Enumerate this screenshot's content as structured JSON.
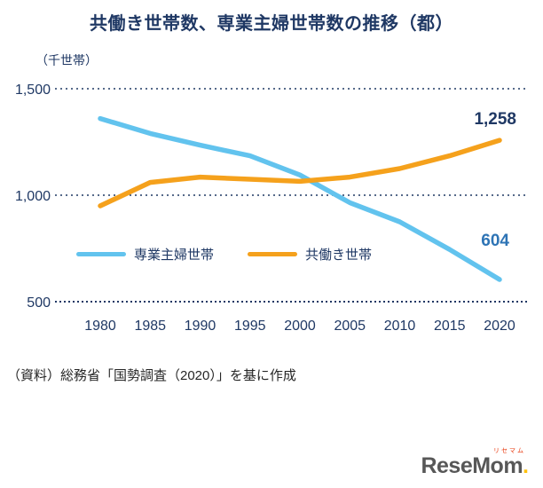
{
  "page": {
    "title": "共働き世帯数、専業主婦世帯数の推移（都）",
    "source_note": "（資料）総務省「国勢調査（2020）」を基に作成",
    "logo": {
      "main": "ReseMom",
      "ruby": "リセマム",
      "dot": "."
    }
  },
  "chart_data": {
    "type": "line",
    "title": "共働き世帯数、専業主婦世帯数の推移（都）",
    "unit_label": "（千世帯）",
    "x": [
      1980,
      1985,
      1990,
      1995,
      2000,
      2005,
      2010,
      2015,
      2020
    ],
    "series": [
      {
        "name": "専業主婦世帯",
        "color": "#62C3EE",
        "values": [
          1360,
          1290,
          1235,
          1185,
          1095,
          965,
          875,
          745,
          604
        ],
        "end_label": "604",
        "end_label_color": "#2E74B5"
      },
      {
        "name": "共働き世帯",
        "color": "#F5A11C",
        "values": [
          950,
          1060,
          1085,
          1075,
          1065,
          1085,
          1125,
          1185,
          1258
        ],
        "end_label": "1,258",
        "end_label_color": "#1F3864"
      }
    ],
    "ylim": [
      500,
      1500
    ],
    "yticks": [
      {
        "value": 1500,
        "label": "1,500"
      },
      {
        "value": 1000,
        "label": "1,000"
      },
      {
        "value": 500,
        "label": "500"
      }
    ],
    "grid": "dotted-horizontal",
    "legend_position": "inside-bottom-left"
  }
}
